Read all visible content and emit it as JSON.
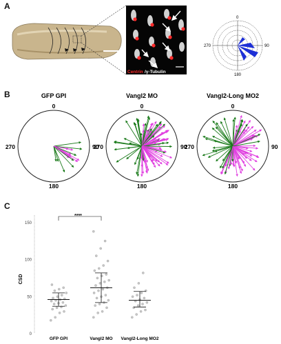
{
  "panels": {
    "a": "A",
    "b": "B",
    "c": "C"
  },
  "panel_a": {
    "stain_label_red": "Centrin",
    "stain_label_white": "/γ-Tubulin",
    "compass": {
      "north": "0",
      "east": "90",
      "south": "180",
      "west": "270"
    }
  },
  "panel_b": {
    "angle_labels": {
      "top": "0",
      "right": "90",
      "bottom": "180",
      "left": "270"
    },
    "plots": [
      {
        "title": "GFP GPI"
      },
      {
        "title": "Vangl2 MO"
      },
      {
        "title": "Vangl2-Long MO2"
      }
    ],
    "colors": {
      "green": "#1a7a1a",
      "magenta": "#e040e0"
    }
  },
  "chart_data": {
    "type": "scatter",
    "ylabel": "CSD",
    "ylim": [
      0,
      160
    ],
    "yticks": [
      "0",
      "50",
      "100",
      "150"
    ],
    "categories": [
      "GFP GPI",
      "Vangl2 MO",
      "Vangl2-Long MO2"
    ],
    "significance": "****",
    "series": [
      {
        "values": [
          18,
          22,
          28,
          30,
          33,
          35,
          36,
          38,
          40,
          41,
          42,
          44,
          45,
          46,
          47,
          48,
          50,
          52,
          55,
          58,
          60,
          62,
          66
        ],
        "mean": 46,
        "sd": [
          37,
          55
        ]
      },
      {
        "values": [
          22,
          28,
          30,
          35,
          38,
          40,
          42,
          45,
          48,
          50,
          52,
          55,
          58,
          60,
          62,
          65,
          68,
          70,
          72,
          75,
          78,
          80,
          85,
          88,
          92,
          98,
          105,
          115,
          125,
          138
        ],
        "mean": 62,
        "sd": [
          42,
          82
        ]
      },
      {
        "values": [
          22,
          26,
          30,
          32,
          35,
          38,
          40,
          42,
          44,
          46,
          48,
          50,
          52,
          55,
          58,
          62,
          68,
          82
        ],
        "mean": 45,
        "sd": [
          36,
          57
        ]
      }
    ]
  }
}
